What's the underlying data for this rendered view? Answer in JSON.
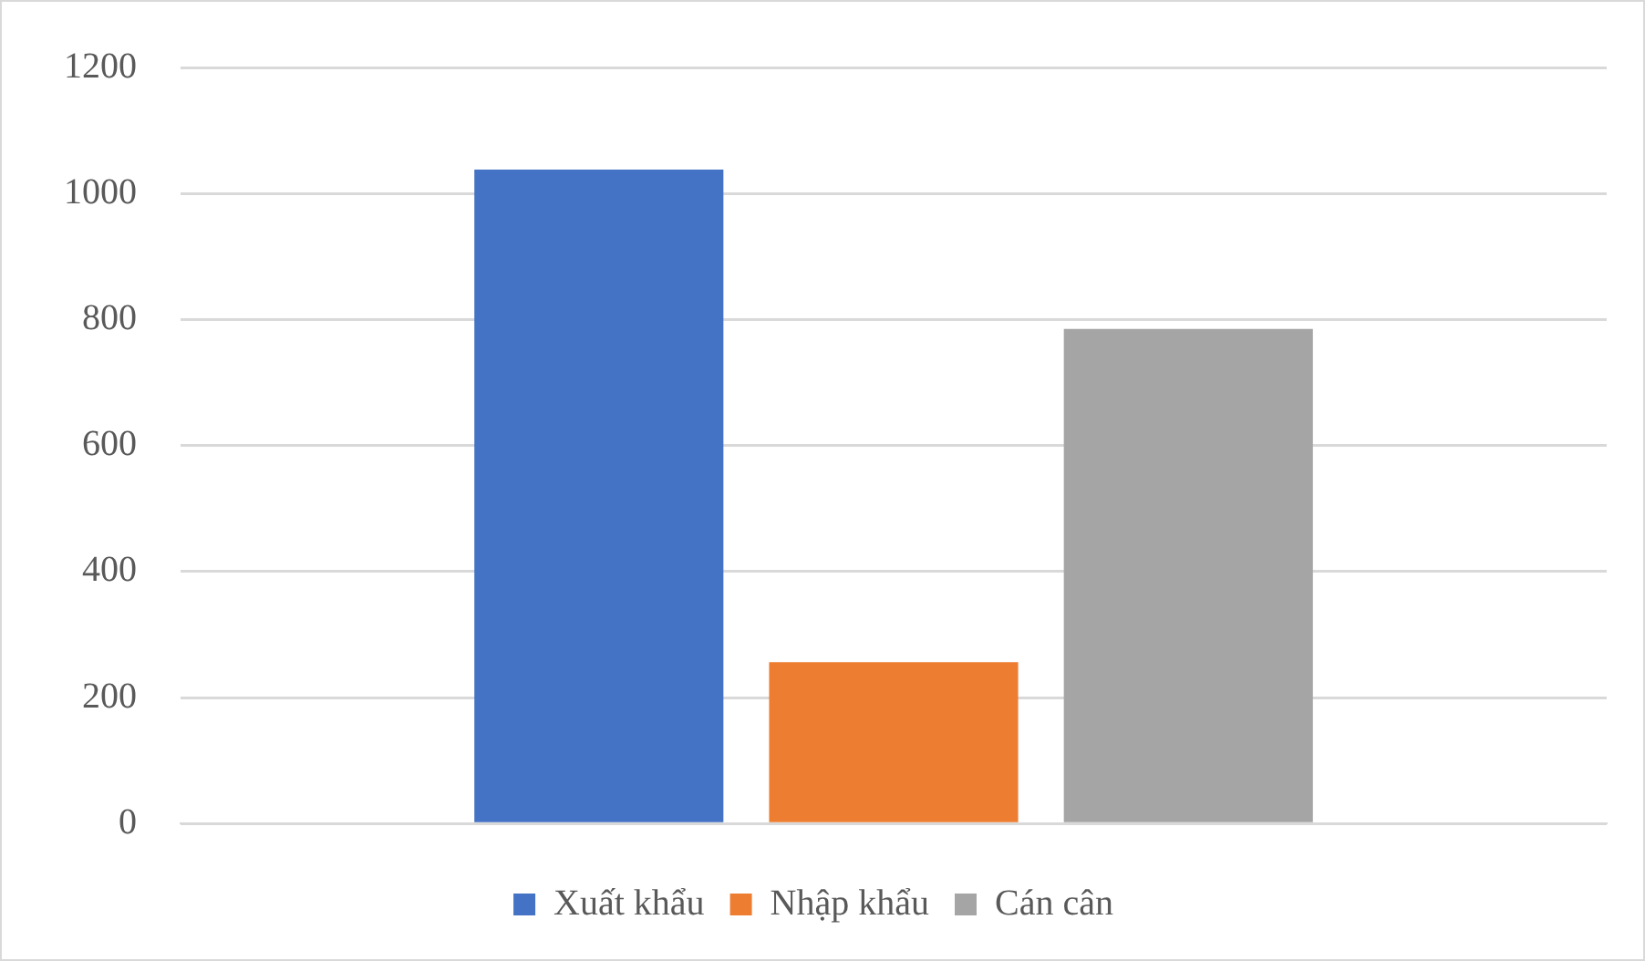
{
  "chart_data": {
    "type": "bar",
    "categories": [
      null
    ],
    "series": [
      {
        "name": "Xuất khẩu",
        "color": "#4472c4",
        "values": [
          1038
        ]
      },
      {
        "name": "Nhập khẩu",
        "color": "#ed7d31",
        "values": [
          256
        ]
      },
      {
        "name": "Cán cân",
        "color": "#a5a5a5",
        "values": [
          785
        ]
      }
    ],
    "ylim": [
      0,
      1200
    ],
    "yticks": [
      0,
      200,
      400,
      600,
      800,
      1000,
      1200
    ],
    "grid": "y",
    "legend": "bottom"
  }
}
